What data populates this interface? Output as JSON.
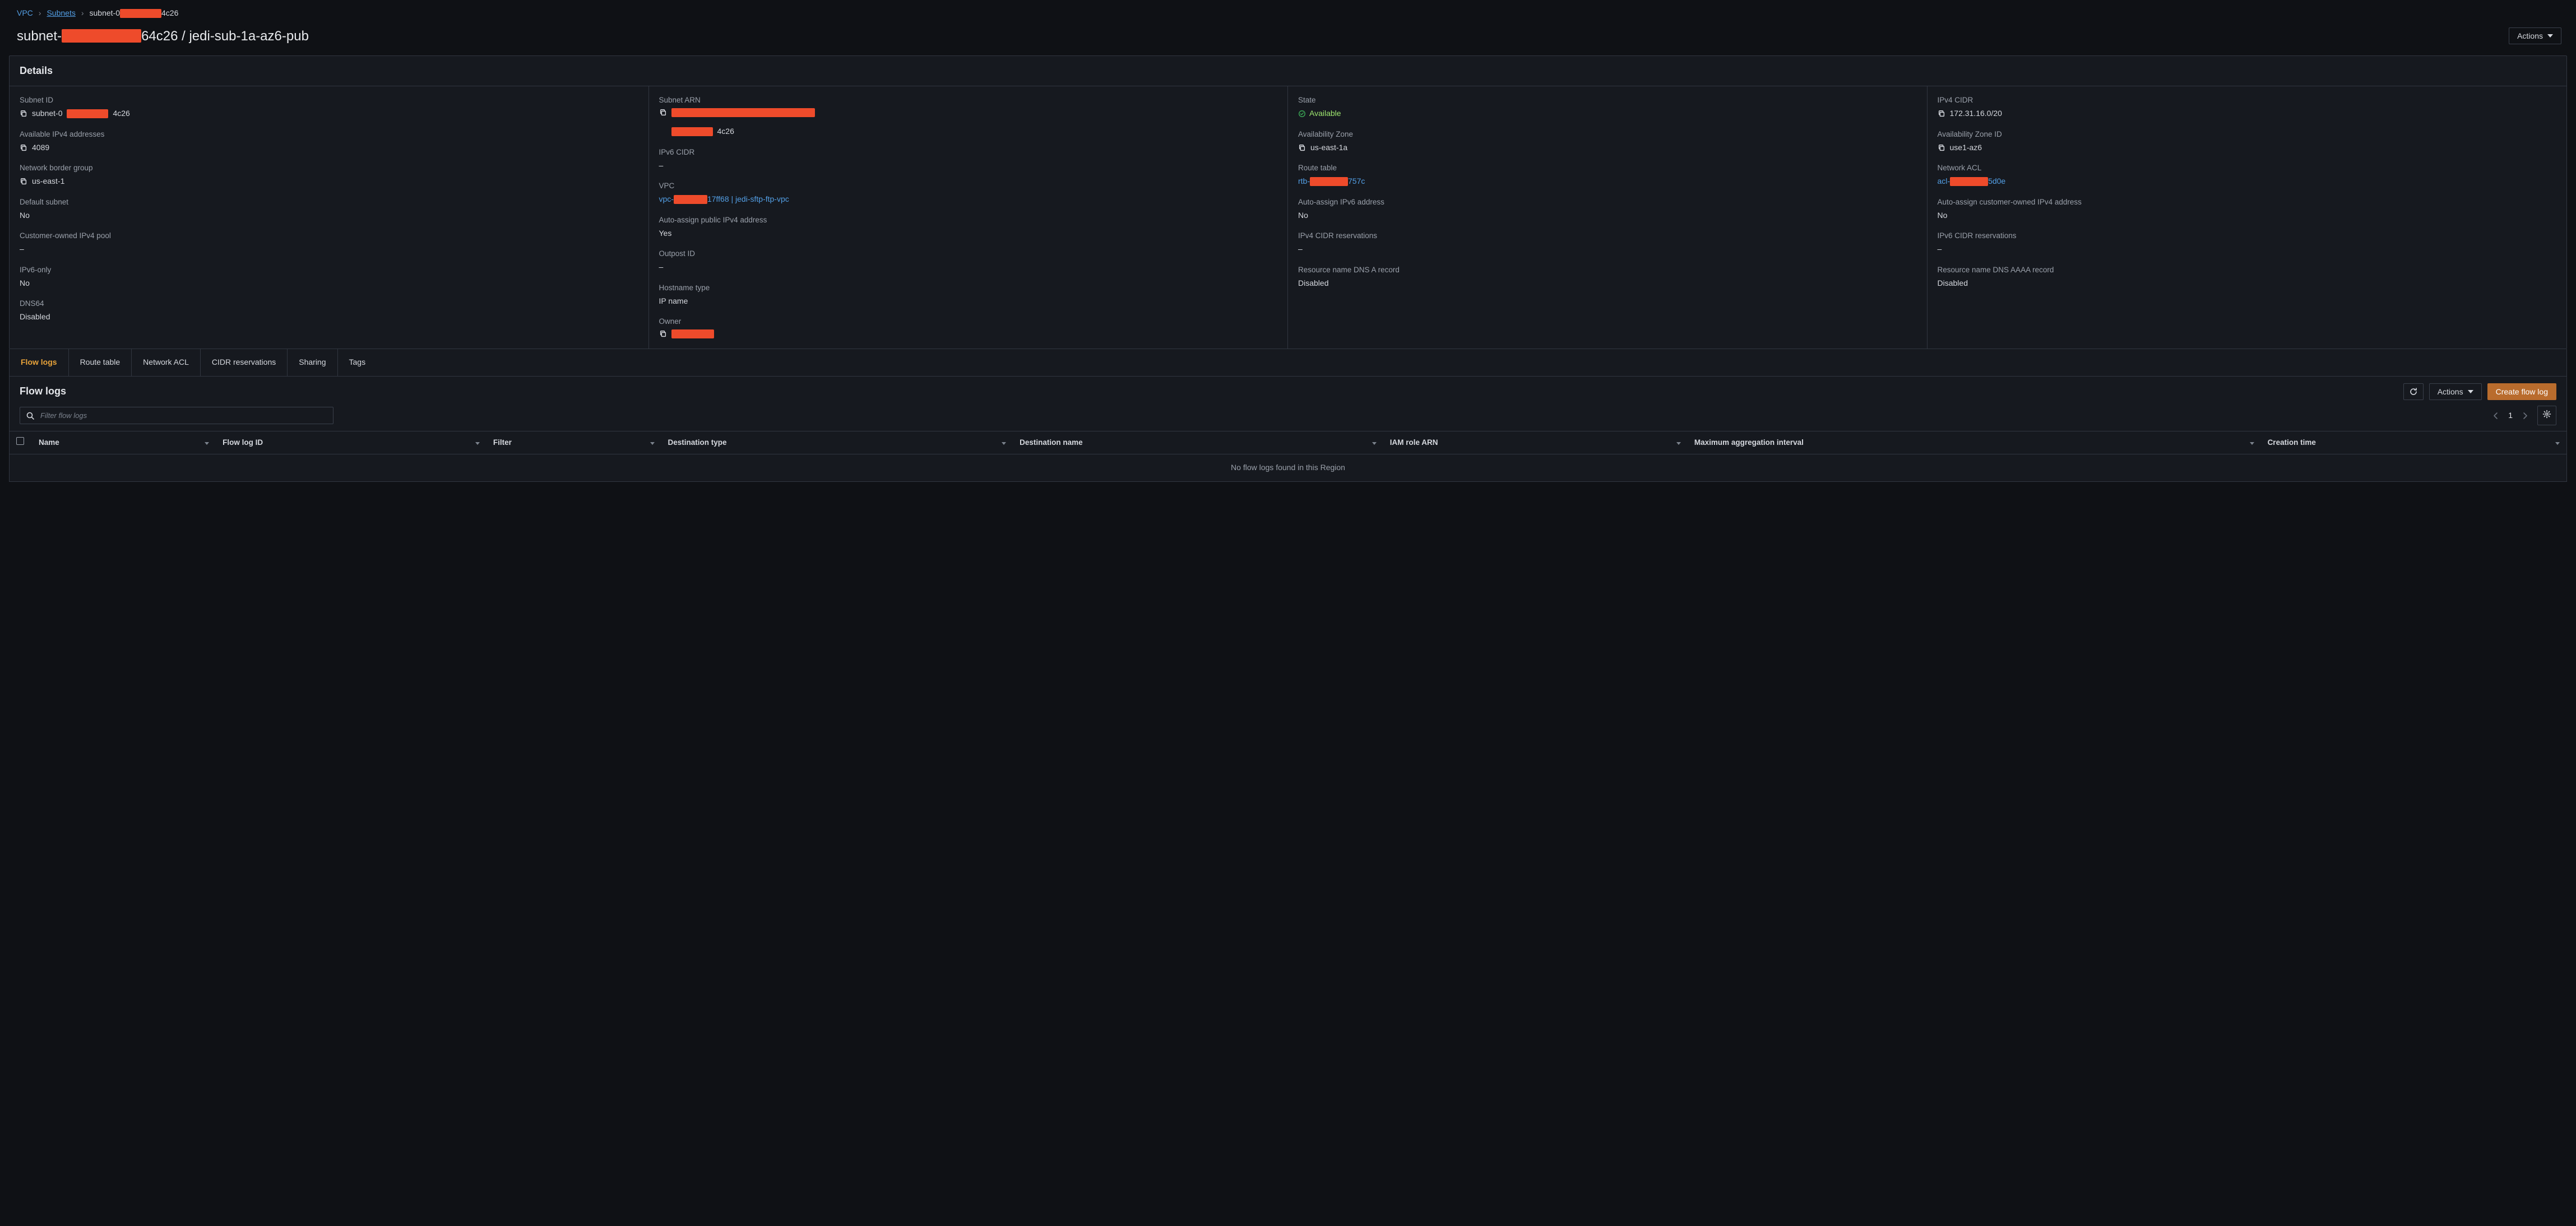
{
  "colors": {
    "bg": "#0f1115",
    "panel": "#16191f",
    "border": "#313640",
    "text": "#d5d8de",
    "text_dim": "#9aa0aa",
    "link": "#539fe5",
    "accent": "#ff9900",
    "ok": "#9fe870",
    "redact": "#ee4b2b",
    "btn_orange": "#b96c2d"
  },
  "breadcrumb": {
    "items": [
      {
        "label": "VPC",
        "link": true,
        "underline": false
      },
      {
        "label": "Subnets",
        "link": true,
        "underline": true
      }
    ],
    "currentPrefix": "subnet-0",
    "redactW": 74,
    "currentSuffix": "4c26"
  },
  "header": {
    "titlePrefix": "subnet-",
    "titleRedactW": 142,
    "titleMid": "64c26 / jedi-sub-1a-az6-pub",
    "actions": "Actions"
  },
  "detailsTitle": "Details",
  "details": {
    "col1": [
      {
        "k": "Subnet ID",
        "type": "copyredact",
        "prefix": "subnet-0",
        "redactW": 74,
        "suffix": "4c26"
      },
      {
        "k": "Available IPv4 addresses",
        "type": "copy",
        "v": "4089"
      },
      {
        "k": "Network border group",
        "type": "copy",
        "v": "us-east-1"
      },
      {
        "k": "Default subnet",
        "type": "plain",
        "v": "No"
      },
      {
        "k": "Customer-owned IPv4 pool",
        "type": "dash"
      },
      {
        "k": "IPv6-only",
        "type": "plain",
        "v": "No"
      },
      {
        "k": "DNS64",
        "type": "plain",
        "v": "Disabled"
      }
    ],
    "col2": [
      {
        "k": "Subnet ARN",
        "type": "copyredact2",
        "redactW1": 256,
        "redactW2": 74,
        "suffix": "4c26"
      },
      {
        "k": "IPv6 CIDR",
        "type": "dash"
      },
      {
        "k": "VPC",
        "type": "linkredact",
        "prefix": "vpc-",
        "redactW": 60,
        "suffix": "17ff68 | jedi-sftp-ftp-vpc"
      },
      {
        "k": "Auto-assign public IPv4 address",
        "type": "plain",
        "v": "Yes"
      },
      {
        "k": "Outpost ID",
        "type": "dash"
      },
      {
        "k": "Hostname type",
        "type": "plain",
        "v": "IP name"
      },
      {
        "k": "Owner",
        "type": "copyredactonly",
        "redactW": 76
      }
    ],
    "col3": [
      {
        "k": "State",
        "type": "status",
        "v": "Available"
      },
      {
        "k": "Availability Zone",
        "type": "copy",
        "v": "us-east-1a"
      },
      {
        "k": "Route table",
        "type": "linkredact",
        "prefix": "rtb-",
        "redactW": 68,
        "suffix": "757c"
      },
      {
        "k": "Auto-assign IPv6 address",
        "type": "plain",
        "v": "No"
      },
      {
        "k": "IPv4 CIDR reservations",
        "type": "dash"
      },
      {
        "k": "Resource name DNS A record",
        "type": "plain",
        "v": "Disabled"
      }
    ],
    "col4": [
      {
        "k": "IPv4 CIDR",
        "type": "copy",
        "v": "172.31.16.0/20"
      },
      {
        "k": "Availability Zone ID",
        "type": "copy",
        "v": "use1-az6"
      },
      {
        "k": "Network ACL",
        "type": "linkredact",
        "prefix": "acl-",
        "redactW": 68,
        "suffix": "5d0e"
      },
      {
        "k": "Auto-assign customer-owned IPv4 address",
        "type": "plain",
        "v": "No"
      },
      {
        "k": "IPv6 CIDR reservations",
        "type": "dash"
      },
      {
        "k": "Resource name DNS AAAA record",
        "type": "plain",
        "v": "Disabled"
      }
    ]
  },
  "tabs": [
    "Flow logs",
    "Route table",
    "Network ACL",
    "CIDR reservations",
    "Sharing",
    "Tags"
  ],
  "activeTab": 0,
  "flow": {
    "title": "Flow logs",
    "actions": "Actions",
    "create": "Create flow log",
    "filterPlaceholder": "Filter flow logs",
    "page": "1",
    "columns": [
      "Name",
      "Flow log ID",
      "Filter",
      "Destination type",
      "Destination name",
      "IAM role ARN",
      "Maximum aggregation interval",
      "Creation time"
    ],
    "empty": "No flow logs found in this Region"
  }
}
